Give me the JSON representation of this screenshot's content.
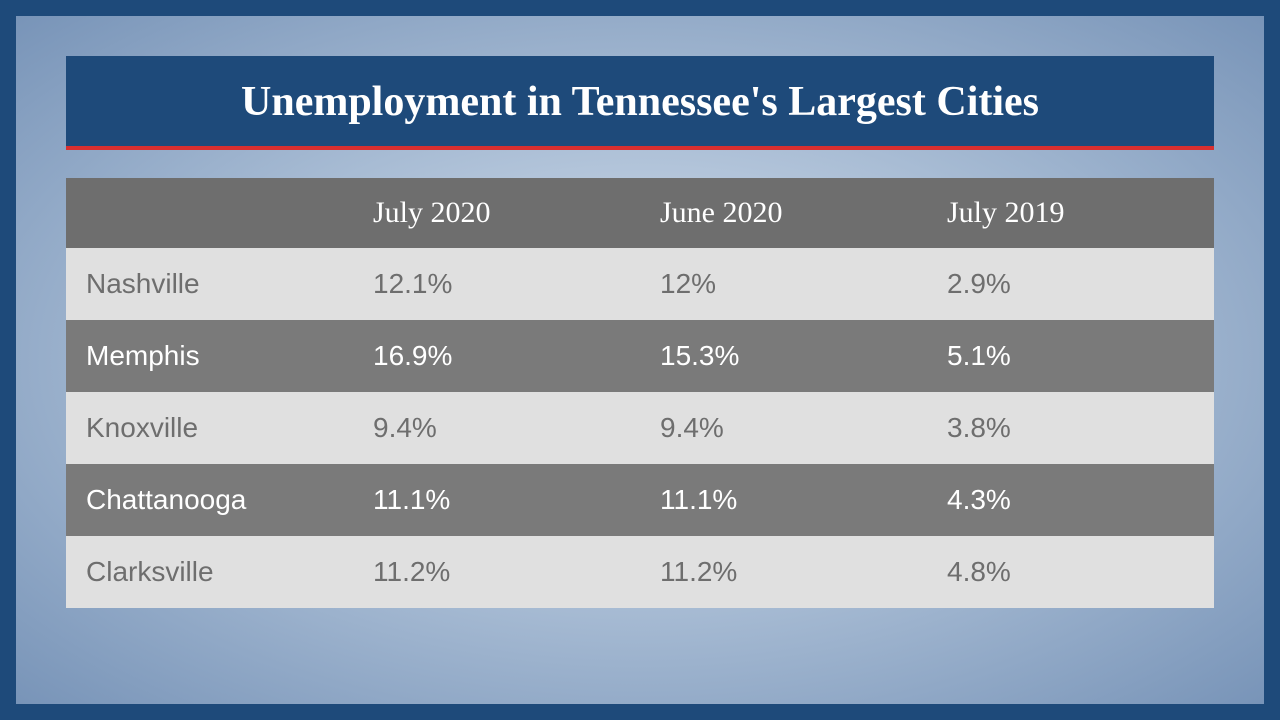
{
  "title": "Unemployment in Tennessee's Largest Cities",
  "table": {
    "type": "table",
    "columns": [
      "",
      "July 2020",
      "June 2020",
      "July 2019"
    ],
    "rows": [
      {
        "city": "Nashville",
        "jul2020": "12.1%",
        "jun2020": "12%",
        "jul2019": "2.9%"
      },
      {
        "city": "Memphis",
        "jul2020": "16.9%",
        "jun2020": "15.3%",
        "jul2019": "5.1%"
      },
      {
        "city": "Knoxville",
        "jul2020": "9.4%",
        "jun2020": "9.4%",
        "jul2019": "3.8%"
      },
      {
        "city": "Chattanooga",
        "jul2020": "11.1%",
        "jun2020": "11.1%",
        "jul2019": "4.3%"
      },
      {
        "city": "Clarksville",
        "jul2020": "11.2%",
        "jun2020": "11.2%",
        "jul2019": "4.8%"
      }
    ],
    "header_bg": "#6e6e6e",
    "header_text_color": "#ffffff",
    "row_light_bg": "#e0e0e0",
    "row_light_text": "#6e6e6e",
    "row_dark_bg": "#7a7a7a",
    "row_dark_text": "#ffffff",
    "header_fontsize": 30,
    "cell_fontsize": 28
  },
  "colors": {
    "frame": "#1e4a7a",
    "accent_line": "#d92f2f",
    "title_text": "#ffffff",
    "panel_gradient_inner": "#d8e2ef",
    "panel_gradient_mid": "#a8bcd4",
    "panel_gradient_outer": "#7894b8"
  },
  "title_fontsize": 42
}
